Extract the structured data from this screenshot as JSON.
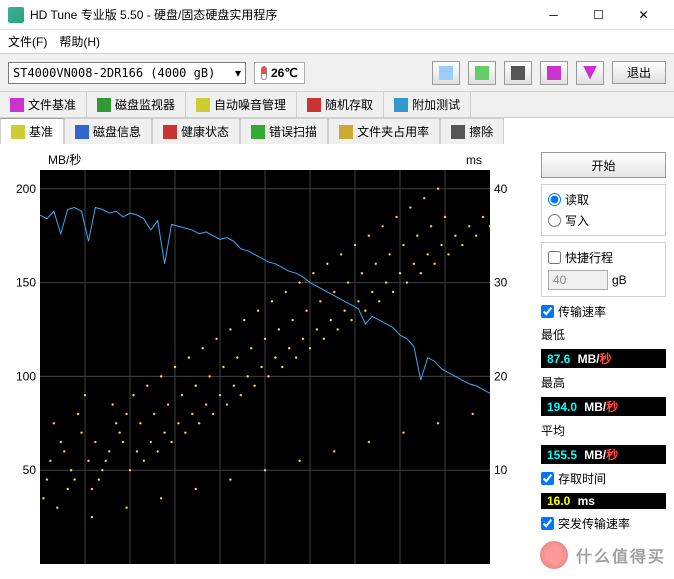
{
  "window": {
    "title": "HD Tune 专业版 5.50 - 硬盘/固态硬盘实用程序"
  },
  "menu": {
    "file": "文件(F)",
    "help": "帮助(H)"
  },
  "toolbar": {
    "drive": "ST4000VN008-2DR166 (4000 gB)",
    "temp": "26℃",
    "exit": "退出"
  },
  "tabs1": [
    {
      "label": "文件基准",
      "color": "#c3c"
    },
    {
      "label": "磁盘监视器",
      "color": "#393"
    },
    {
      "label": "自动噪音管理",
      "color": "#cc3"
    },
    {
      "label": "随机存取",
      "color": "#c33"
    },
    {
      "label": "附加测试",
      "color": "#39c"
    }
  ],
  "tabs2": [
    {
      "label": "基准",
      "active": true,
      "color": "#cc3"
    },
    {
      "label": "磁盘信息",
      "color": "#36c"
    },
    {
      "label": "健康状态",
      "color": "#c33"
    },
    {
      "label": "错误扫描",
      "color": "#3a3"
    },
    {
      "label": "文件夹占用率",
      "color": "#ca3"
    },
    {
      "label": "擦除",
      "color": "#555"
    }
  ],
  "side": {
    "start": "开始",
    "read": "读取",
    "write": "写入",
    "short_stroke": "快捷行程",
    "stroke_val": "40",
    "stroke_unit": "gB",
    "transfer_rate": "传输速率",
    "min_label": "最低",
    "min": "87.6",
    "rate_unit": "MB/",
    "rate_unit2": "秒",
    "max_label": "最高",
    "max": "194.0",
    "avg_label": "平均",
    "avg": "155.5",
    "access_label": "存取时间",
    "access": "16.0",
    "access_unit": "ms",
    "burst_label": "突发传输速率",
    "burst": "",
    "cpu_label": ""
  },
  "chart": {
    "type": "line+scatter",
    "y_left_label": "MB/秒",
    "y_right_label": "ms",
    "y_left_ticks": [
      50,
      100,
      150,
      200
    ],
    "y_right_ticks": [
      10,
      20,
      30,
      40
    ],
    "y_left_lim": [
      0,
      210
    ],
    "y_right_lim": [
      0,
      42
    ],
    "bg": "#000000",
    "grid": "#404040",
    "line_color": "#3fa9f5",
    "scatter_color": "#ffd24a",
    "line_width": 1,
    "scatter_size": 1.2,
    "line": [
      [
        0,
        186
      ],
      [
        2,
        184
      ],
      [
        4,
        188
      ],
      [
        6,
        176
      ],
      [
        8,
        189
      ],
      [
        10,
        190
      ],
      [
        12,
        188
      ],
      [
        14,
        172
      ],
      [
        16,
        190
      ],
      [
        18,
        189
      ],
      [
        20,
        187
      ],
      [
        22,
        188
      ],
      [
        24,
        185
      ],
      [
        26,
        187
      ],
      [
        28,
        186
      ],
      [
        30,
        184
      ],
      [
        32,
        178
      ],
      [
        34,
        183
      ],
      [
        36,
        160
      ],
      [
        38,
        181
      ],
      [
        40,
        180
      ],
      [
        42,
        179
      ],
      [
        44,
        178
      ],
      [
        46,
        176
      ],
      [
        48,
        177
      ],
      [
        50,
        175
      ],
      [
        52,
        173
      ],
      [
        54,
        174
      ],
      [
        56,
        172
      ],
      [
        58,
        168
      ],
      [
        60,
        167
      ],
      [
        62,
        165
      ],
      [
        64,
        163
      ],
      [
        66,
        161
      ],
      [
        68,
        160
      ],
      [
        70,
        158
      ],
      [
        72,
        156
      ],
      [
        74,
        155
      ],
      [
        76,
        153
      ],
      [
        78,
        150
      ],
      [
        80,
        148
      ],
      [
        82,
        146
      ],
      [
        84,
        144
      ],
      [
        86,
        142
      ],
      [
        88,
        140
      ],
      [
        90,
        138
      ],
      [
        92,
        136
      ],
      [
        94,
        128
      ],
      [
        96,
        132
      ],
      [
        98,
        130
      ],
      [
        100,
        128
      ],
      [
        102,
        126
      ],
      [
        104,
        122
      ],
      [
        106,
        120
      ],
      [
        108,
        116
      ],
      [
        110,
        98
      ],
      [
        112,
        110
      ],
      [
        114,
        108
      ],
      [
        116,
        104
      ],
      [
        118,
        102
      ],
      [
        120,
        100
      ],
      [
        122,
        98
      ],
      [
        124,
        96
      ],
      [
        126,
        95
      ],
      [
        128,
        93
      ],
      [
        130,
        91
      ]
    ],
    "scatter": [
      [
        1,
        7
      ],
      [
        3,
        11
      ],
      [
        2,
        9
      ],
      [
        5,
        6
      ],
      [
        6,
        13
      ],
      [
        8,
        8
      ],
      [
        4,
        15
      ],
      [
        7,
        12
      ],
      [
        10,
        9
      ],
      [
        12,
        14
      ],
      [
        9,
        10
      ],
      [
        14,
        11
      ],
      [
        11,
        16
      ],
      [
        15,
        8
      ],
      [
        16,
        13
      ],
      [
        18,
        10
      ],
      [
        13,
        18
      ],
      [
        20,
        12
      ],
      [
        17,
        9
      ],
      [
        22,
        15
      ],
      [
        19,
        11
      ],
      [
        24,
        13
      ],
      [
        21,
        17
      ],
      [
        26,
        10
      ],
      [
        23,
        14
      ],
      [
        28,
        12
      ],
      [
        25,
        16
      ],
      [
        30,
        11
      ],
      [
        27,
        18
      ],
      [
        32,
        13
      ],
      [
        29,
        15
      ],
      [
        34,
        12
      ],
      [
        31,
        19
      ],
      [
        36,
        14
      ],
      [
        33,
        16
      ],
      [
        38,
        13
      ],
      [
        35,
        20
      ],
      [
        40,
        15
      ],
      [
        37,
        17
      ],
      [
        42,
        14
      ],
      [
        39,
        21
      ],
      [
        44,
        16
      ],
      [
        41,
        18
      ],
      [
        46,
        15
      ],
      [
        43,
        22
      ],
      [
        48,
        17
      ],
      [
        45,
        19
      ],
      [
        50,
        16
      ],
      [
        47,
        23
      ],
      [
        52,
        18
      ],
      [
        49,
        20
      ],
      [
        54,
        17
      ],
      [
        51,
        24
      ],
      [
        56,
        19
      ],
      [
        53,
        21
      ],
      [
        58,
        18
      ],
      [
        55,
        25
      ],
      [
        60,
        20
      ],
      [
        57,
        22
      ],
      [
        62,
        19
      ],
      [
        59,
        26
      ],
      [
        64,
        21
      ],
      [
        61,
        23
      ],
      [
        66,
        20
      ],
      [
        63,
        27
      ],
      [
        68,
        22
      ],
      [
        65,
        24
      ],
      [
        70,
        21
      ],
      [
        67,
        28
      ],
      [
        72,
        23
      ],
      [
        69,
        25
      ],
      [
        74,
        22
      ],
      [
        71,
        29
      ],
      [
        76,
        24
      ],
      [
        73,
        26
      ],
      [
        78,
        23
      ],
      [
        75,
        30
      ],
      [
        80,
        25
      ],
      [
        77,
        27
      ],
      [
        82,
        24
      ],
      [
        79,
        31
      ],
      [
        84,
        26
      ],
      [
        81,
        28
      ],
      [
        86,
        25
      ],
      [
        83,
        32
      ],
      [
        88,
        27
      ],
      [
        85,
        29
      ],
      [
        90,
        26
      ],
      [
        87,
        33
      ],
      [
        92,
        28
      ],
      [
        89,
        30
      ],
      [
        94,
        27
      ],
      [
        91,
        34
      ],
      [
        96,
        29
      ],
      [
        93,
        31
      ],
      [
        98,
        28
      ],
      [
        95,
        35
      ],
      [
        100,
        30
      ],
      [
        97,
        32
      ],
      [
        102,
        29
      ],
      [
        99,
        36
      ],
      [
        104,
        31
      ],
      [
        101,
        33
      ],
      [
        106,
        30
      ],
      [
        103,
        37
      ],
      [
        108,
        32
      ],
      [
        105,
        34
      ],
      [
        110,
        31
      ],
      [
        107,
        38
      ],
      [
        112,
        33
      ],
      [
        109,
        35
      ],
      [
        114,
        32
      ],
      [
        111,
        39
      ],
      [
        116,
        34
      ],
      [
        113,
        36
      ],
      [
        118,
        33
      ],
      [
        115,
        40
      ],
      [
        120,
        35
      ],
      [
        117,
        37
      ],
      [
        122,
        34
      ],
      [
        124,
        36
      ],
      [
        126,
        35
      ],
      [
        128,
        37
      ],
      [
        130,
        36
      ],
      [
        15,
        5
      ],
      [
        25,
        6
      ],
      [
        35,
        7
      ],
      [
        45,
        8
      ],
      [
        55,
        9
      ],
      [
        65,
        10
      ],
      [
        75,
        11
      ],
      [
        85,
        12
      ],
      [
        95,
        13
      ],
      [
        105,
        14
      ],
      [
        115,
        15
      ],
      [
        125,
        16
      ]
    ]
  },
  "watermark": "什么值得买"
}
